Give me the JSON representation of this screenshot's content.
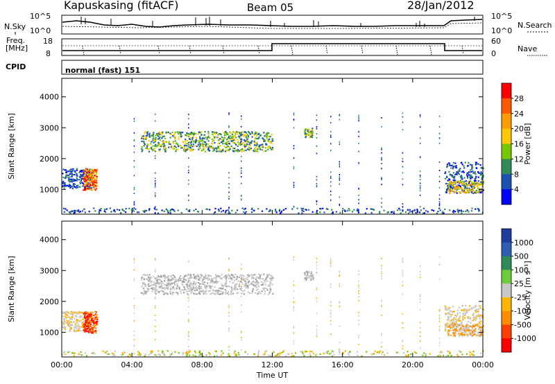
{
  "header": {
    "station": "Kapuskasing (fitACF)",
    "beam": "Beam 05",
    "date": "28/Jan/2012"
  },
  "noise_panel": {
    "left_label": "N.Sky",
    "right_label": "N.Search",
    "top_tick": "10^5",
    "bottom_tick": "10^0",
    "right_top_tick": "10^5",
    "right_bottom_tick": "10^0"
  },
  "freq_panel": {
    "left_label_line1": "Freq.",
    "left_label_line2": "[MHz]",
    "left_ticks": [
      "18",
      "8"
    ],
    "right_label": "Nave",
    "right_ticks": [
      "60",
      "0"
    ]
  },
  "cpid": {
    "label": "CPID",
    "value": "normal (fast) 151"
  },
  "chart_data": [
    {
      "type": "heatmap",
      "title": "",
      "ylabel": "Slant Range [km]",
      "xlabel": "",
      "x_ticks": [
        "00:00",
        "04:00",
        "08:00",
        "12:00",
        "16:00",
        "20:00",
        "00:00"
      ],
      "y_ticks": [
        "1000",
        "2000",
        "3000",
        "4000"
      ],
      "ylim": [
        200,
        4600
      ],
      "xlim_hours": [
        0,
        24
      ],
      "colorbar_label": "Power [dB]",
      "colorbar_ticks": [
        "28",
        "24",
        "20",
        "16",
        "12",
        "8",
        "4"
      ],
      "colorbar_colors": [
        "#ff0000",
        "#ff5a00",
        "#ff9a00",
        "#ffc800",
        "#78c800",
        "#2e8b57",
        "#1e50b4",
        "#0000ff"
      ]
    },
    {
      "type": "heatmap",
      "title": "",
      "ylabel": "Slant Range [km]",
      "xlabel": "Time UT",
      "x_ticks": [
        "00:00",
        "04:00",
        "08:00",
        "12:00",
        "16:00",
        "20:00",
        "00:00"
      ],
      "y_ticks": [
        "1000",
        "2000",
        "3000",
        "4000"
      ],
      "ylim": [
        200,
        4600
      ],
      "xlim_hours": [
        0,
        24
      ],
      "colorbar_label": "Velocity [m s⁻¹]",
      "colorbar_ticks": [
        "1000",
        "500",
        "100",
        "25",
        "-25",
        "-100",
        "-500",
        "-1000"
      ],
      "colorbar_colors": [
        "#1e3ca0",
        "#2e5cb4",
        "#2e8b57",
        "#6ccc3c",
        "#c8c8c8",
        "#ffb400",
        "#ff8c00",
        "#ff4000",
        "#ff0000"
      ]
    }
  ]
}
